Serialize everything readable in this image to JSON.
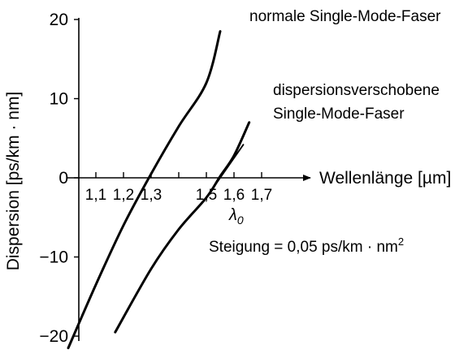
{
  "chart_data": {
    "type": "line",
    "xlabel": "Wellenlänge [µm]",
    "ylabel": "Dispersion [ps/km · nm]",
    "xlim": [
      0.98,
      1.75
    ],
    "ylim": [
      -21,
      20
    ],
    "x_ticks": [
      1.1,
      1.2,
      1.3,
      1.4,
      1.5,
      1.6,
      1.7
    ],
    "x_tick_labels": [
      "1,1",
      "1,2",
      "1,3",
      "",
      "1,5",
      "1,6",
      "1,7"
    ],
    "y_ticks": [
      20,
      10,
      0,
      -10,
      -20
    ],
    "y_tick_labels": [
      "20",
      "10",
      "0",
      "−10",
      "−20"
    ],
    "grid": false,
    "legend": "none",
    "series": [
      {
        "name": "normale Single-Mode-Faser",
        "x": [
          1.0,
          1.1,
          1.2,
          1.3,
          1.4,
          1.5,
          1.55
        ],
        "y": [
          -21.5,
          -13.5,
          -6.0,
          0.5,
          6.5,
          12.0,
          18.5
        ]
      },
      {
        "name": "dispersionsverschobene Single-Mode-Faser",
        "x": [
          1.17,
          1.3,
          1.4,
          1.5,
          1.55,
          1.6,
          1.655
        ],
        "y": [
          -19.5,
          -11.5,
          -6.5,
          -2.5,
          0.2,
          2.8,
          7.0
        ]
      }
    ],
    "annotations": {
      "lambda_symbol": "λ",
      "lambda_subscript": "0",
      "lambda_x": 1.55,
      "slope_text": "Steigung = 0,05 ps/km · nm",
      "slope_superscript": "2",
      "tangent_slope": 0.05,
      "tangent_x": [
        1.49,
        1.635
      ]
    }
  }
}
